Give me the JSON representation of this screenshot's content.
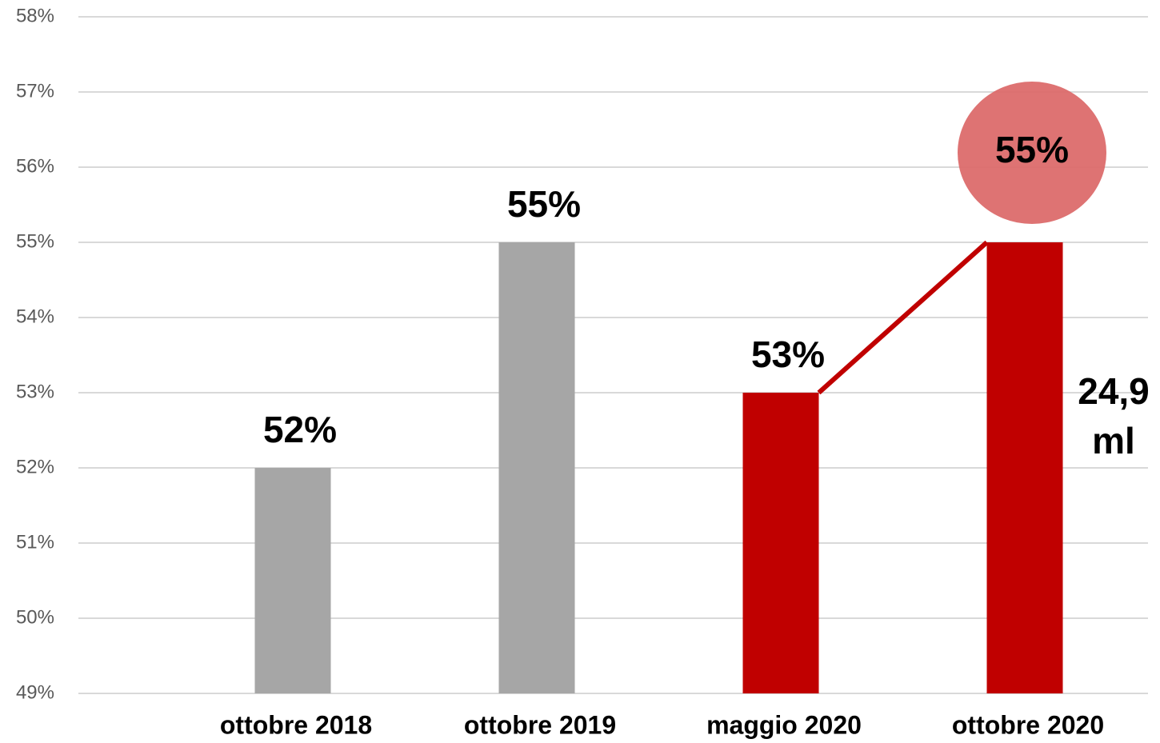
{
  "chart_data": {
    "type": "bar",
    "categories": [
      "ottobre 2018",
      "ottobre 2019",
      "maggio 2020",
      "ottobre 2020"
    ],
    "values": [
      52,
      55,
      53,
      55
    ],
    "value_labels": [
      "52%",
      "55%",
      "53%",
      "55%"
    ],
    "colors": [
      "#a6a6a6",
      "#a6a6a6",
      "#c00000",
      "#c00000"
    ],
    "ylim": [
      49,
      58
    ],
    "yticks": [
      {
        "value": 49,
        "label": "49%"
      },
      {
        "value": 50,
        "label": "50%"
      },
      {
        "value": 51,
        "label": "51%"
      },
      {
        "value": 52,
        "label": "52%"
      },
      {
        "value": 53,
        "label": "53%"
      },
      {
        "value": 54,
        "label": "54%"
      },
      {
        "value": 55,
        "label": "55%"
      },
      {
        "value": 56,
        "label": "56%"
      },
      {
        "value": 57,
        "label": "57%"
      },
      {
        "value": 58,
        "label": "58%"
      }
    ],
    "grid": true,
    "annotation": [
      "24,9",
      "ml"
    ]
  }
}
